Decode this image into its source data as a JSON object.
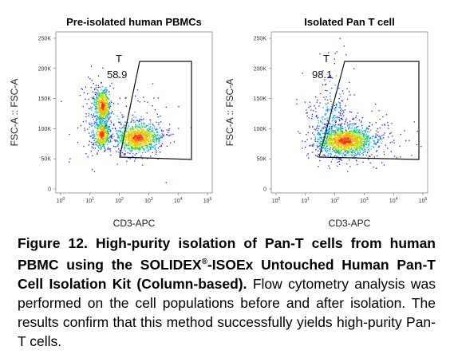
{
  "panels": [
    {
      "title": "Pre-isolated human PBMCs",
      "ylabel": "FSC-A :: FSC-A",
      "xlabel": "CD3-APC",
      "yticks": [
        "250K",
        "200K",
        "150K",
        "100K",
        "50K",
        "0"
      ],
      "xticks": [
        {
          "base": "10",
          "exp": "0"
        },
        {
          "base": "10",
          "exp": "1"
        },
        {
          "base": "10",
          "exp": "2"
        },
        {
          "base": "10",
          "exp": "3"
        },
        {
          "base": "10",
          "exp": "4"
        },
        {
          "base": "10",
          "exp": "5"
        }
      ],
      "gate": {
        "name": "T",
        "percent": "58.9"
      }
    },
    {
      "title": "Isolated Pan T cell",
      "ylabel": "FSC-A :: FSC-A",
      "xlabel": "CD3-APC",
      "yticks": [
        "250K",
        "200K",
        "150K",
        "100K",
        "50K",
        "0"
      ],
      "xticks": [
        {
          "base": "10",
          "exp": "0"
        },
        {
          "base": "10",
          "exp": "1"
        },
        {
          "base": "10",
          "exp": "2"
        },
        {
          "base": "10",
          "exp": "3"
        },
        {
          "base": "10",
          "exp": "4"
        },
        {
          "base": "10",
          "exp": "5"
        }
      ],
      "gate": {
        "name": "T",
        "percent": "98.1"
      }
    }
  ],
  "caption": {
    "bold_1": "Figure 12. High-purity isolation of Pan-T cells from human PBMC using the SOLIDEX",
    "mark": "®",
    "bold_2": "-ISOEx Untouched Human Pan-T Cell Isolation Kit (Column-based).",
    "body": " Flow cytometry analysis was performed on the cell populations before and after isolation. The results confirm that this method successfully yields high-purity Pan-T cells."
  }
}
